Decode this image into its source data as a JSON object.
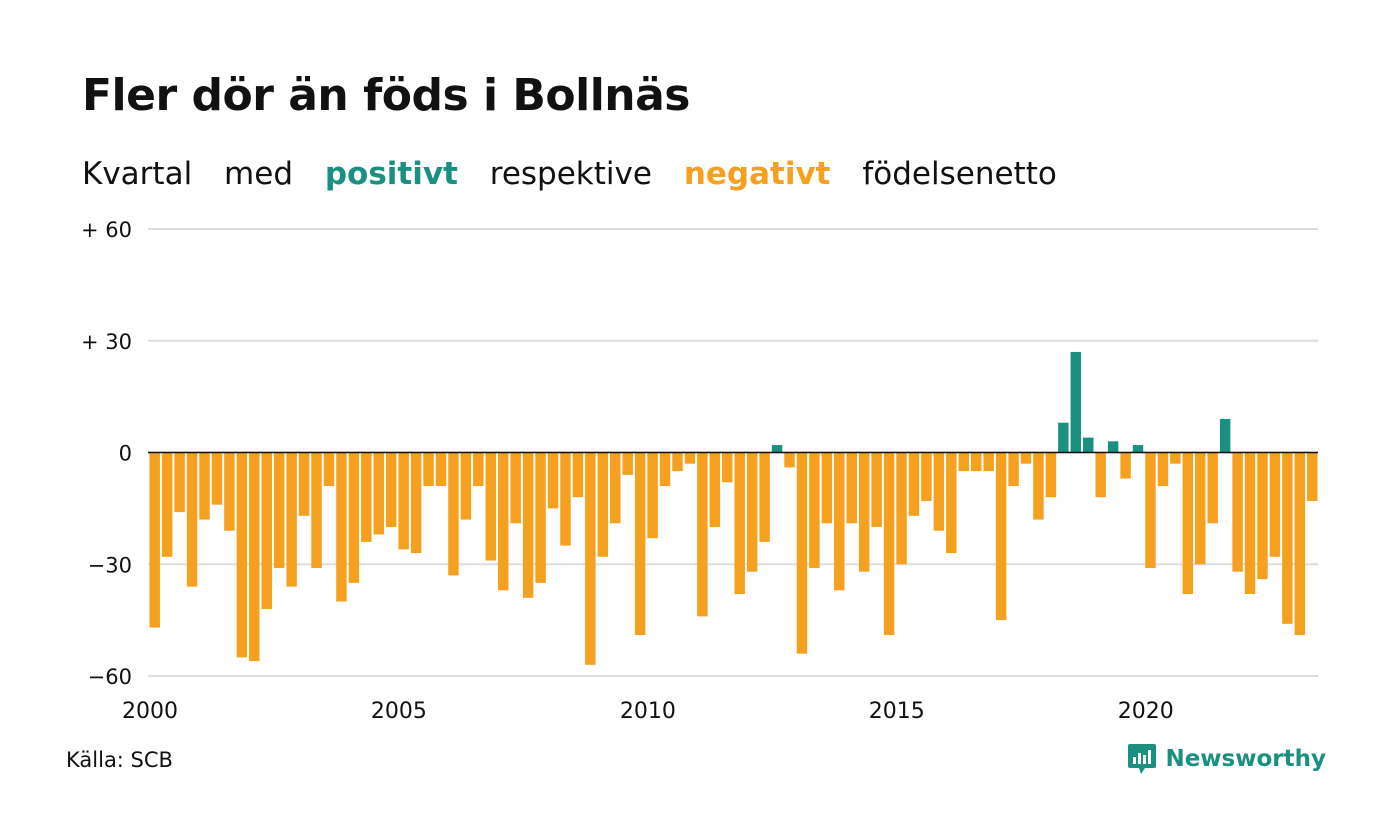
{
  "header": {
    "title": "Fler dör än föds i Bollnäs",
    "subtitle_words": [
      "Kvartal",
      "med",
      "positivt",
      "respektive",
      "negativt",
      "födelsenetto"
    ]
  },
  "colors": {
    "positive": "#1a9080",
    "negative": "#f5a01f",
    "grid": "#dddddd",
    "zero": "#111111"
  },
  "footer": {
    "source": "Källa: SCB",
    "brand": "Newsworthy",
    "brand_icon": "newsworthy-logo-icon"
  },
  "chart_data": {
    "type": "bar",
    "title": "Fler dör än föds i Bollnäs",
    "subtitle": "Kvartal med positivt respektive negativt födelsenetto",
    "xlabel": "",
    "ylabel": "",
    "ylim": [
      -60,
      60
    ],
    "yticks": [
      60,
      30,
      0,
      -30,
      -60
    ],
    "ytick_labels": [
      "+ 60",
      "+ 30",
      "0",
      "−30",
      "−60"
    ],
    "xticks": [
      "2000",
      "2005",
      "2010",
      "2015",
      "2020"
    ],
    "start_year": 2000,
    "grid": true,
    "values": [
      -47,
      -28,
      -16,
      -36,
      -18,
      -14,
      -21,
      -55,
      -56,
      -42,
      -31,
      -36,
      -17,
      -31,
      -9,
      -40,
      -35,
      -24,
      -22,
      -20,
      -26,
      -27,
      -9,
      -9,
      -33,
      -18,
      -9,
      -29,
      -37,
      -19,
      -39,
      -35,
      -15,
      -25,
      -12,
      -57,
      -28,
      -19,
      -6,
      -49,
      -23,
      -9,
      -5,
      -3,
      -44,
      -20,
      -8,
      -38,
      -32,
      -24,
      2,
      -4,
      -54,
      -31,
      -19,
      -37,
      -19,
      -32,
      -20,
      -49,
      -30,
      -17,
      -13,
      -21,
      -27,
      -5,
      -5,
      -5,
      -45,
      -9,
      -3,
      -18,
      -12,
      8,
      27,
      4,
      -12,
      3,
      -7,
      2,
      -31,
      -9,
      -3,
      -38,
      -30,
      -19,
      9,
      -32,
      -38,
      -34,
      -28,
      -46,
      -49,
      -13
    ]
  }
}
